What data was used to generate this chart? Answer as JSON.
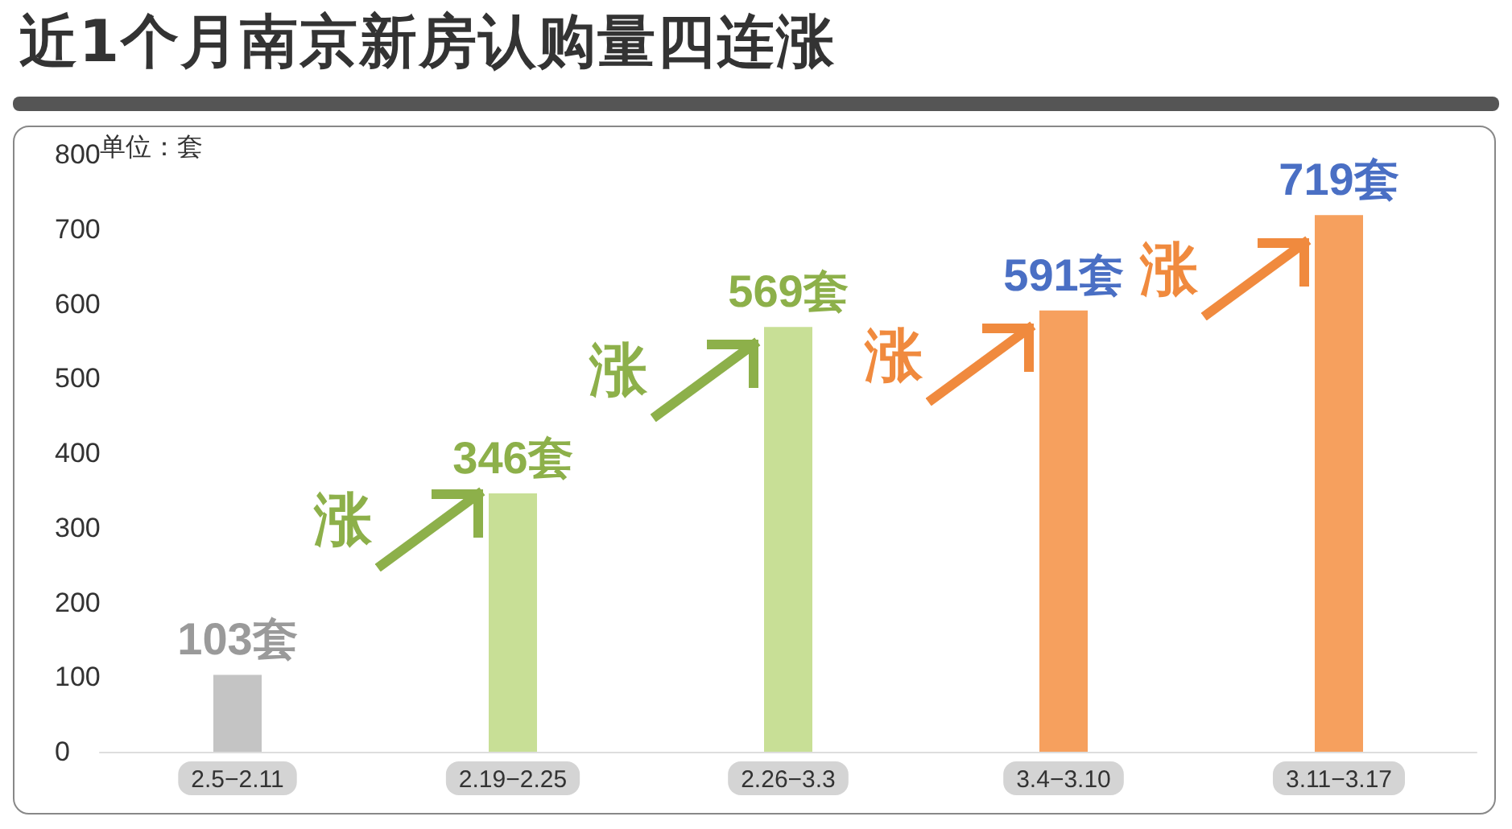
{
  "chart_data": {
    "type": "bar",
    "title": "近1个月南京新房认购量四连涨",
    "categories": [
      "2.5−2.11",
      "2.19−2.25",
      "2.26−3.3",
      "3.4−3.10",
      "3.11−3.17"
    ],
    "values": [
      103,
      346,
      569,
      591,
      719
    ],
    "colors": [
      "#c4c4c4",
      "#c8df96",
      "#c8df96",
      "#f6a05e",
      "#f6a05e"
    ],
    "value_labels": [
      "103套",
      "346套",
      "569套",
      "591套",
      "719套"
    ],
    "ylim": [
      0,
      800
    ],
    "yticks": [
      0,
      100,
      200,
      300,
      400,
      500,
      600,
      700,
      800
    ],
    "grid": false,
    "annotations": [
      "单位：套",
      "涨",
      "涨",
      "涨",
      "涨"
    ]
  }
}
